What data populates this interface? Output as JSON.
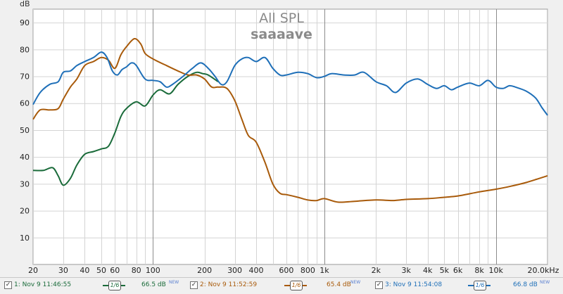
{
  "chart_data": {
    "type": "line",
    "title": "All SPL",
    "subtitle": "saaaave",
    "ylabel": "dB",
    "xscale": "log",
    "xlim": [
      20,
      20000
    ],
    "ylim": [
      0,
      95
    ],
    "grid": true,
    "x_tick_labels": [
      "20",
      "30",
      "40",
      "50",
      "60",
      "80",
      "100",
      "200",
      "300",
      "400",
      "600",
      "800",
      "1k",
      "2k",
      "3k",
      "4k",
      "5k",
      "6k",
      "8k",
      "10k",
      "20.0kHz"
    ],
    "y_tick_labels": [
      "90",
      "80",
      "70",
      "60",
      "50",
      "40",
      "30",
      "20",
      "10"
    ],
    "series": [
      {
        "name": "1: Nov 9 11:46:55",
        "color": "#1a6b3a",
        "points": [
          [
            20,
            35
          ],
          [
            23,
            35
          ],
          [
            26,
            36
          ],
          [
            28,
            33
          ],
          [
            30,
            29.5
          ],
          [
            33,
            32
          ],
          [
            36,
            37
          ],
          [
            40,
            41
          ],
          [
            45,
            42
          ],
          [
            50,
            43
          ],
          [
            55,
            44
          ],
          [
            60,
            49
          ],
          [
            65,
            55
          ],
          [
            70,
            58
          ],
          [
            80,
            60.5
          ],
          [
            90,
            59
          ],
          [
            100,
            63
          ],
          [
            110,
            65
          ],
          [
            125,
            63.5
          ],
          [
            140,
            67
          ],
          [
            160,
            70
          ],
          [
            180,
            71.5
          ],
          [
            195,
            71
          ],
          [
            210,
            70.5
          ],
          [
            240,
            68
          ]
        ]
      },
      {
        "name": "2: Nov 9 11:52:59",
        "color": "#a85a0a",
        "points": [
          [
            20,
            54
          ],
          [
            22,
            57.5
          ],
          [
            25,
            57.5
          ],
          [
            28,
            58
          ],
          [
            30,
            61.5
          ],
          [
            33,
            66
          ],
          [
            36,
            69
          ],
          [
            40,
            74
          ],
          [
            45,
            75.5
          ],
          [
            50,
            77
          ],
          [
            55,
            76
          ],
          [
            60,
            73
          ],
          [
            65,
            78
          ],
          [
            70,
            81
          ],
          [
            78,
            84
          ],
          [
            85,
            82
          ],
          [
            90,
            78.5
          ],
          [
            100,
            76.5
          ],
          [
            120,
            74
          ],
          [
            140,
            72
          ],
          [
            160,
            70.5
          ],
          [
            180,
            70.5
          ],
          [
            200,
            69
          ],
          [
            220,
            66
          ],
          [
            240,
            66
          ],
          [
            270,
            65.5
          ],
          [
            300,
            61
          ],
          [
            330,
            54
          ],
          [
            360,
            48
          ],
          [
            400,
            45.5
          ],
          [
            450,
            38
          ],
          [
            500,
            30
          ],
          [
            550,
            26.5
          ],
          [
            600,
            26
          ],
          [
            700,
            25
          ],
          [
            800,
            24
          ],
          [
            900,
            23.8
          ],
          [
            1000,
            24.5
          ],
          [
            1200,
            23.2
          ],
          [
            1500,
            23.5
          ],
          [
            2000,
            24
          ],
          [
            2500,
            23.8
          ],
          [
            3000,
            24.2
          ],
          [
            4000,
            24.5
          ],
          [
            5000,
            25
          ],
          [
            6000,
            25.5
          ],
          [
            8000,
            27
          ],
          [
            10000,
            28
          ],
          [
            12000,
            29
          ],
          [
            15000,
            30.5
          ],
          [
            20000,
            33
          ]
        ]
      },
      {
        "name": "3: Nov 9 11:54:08",
        "color": "#1e6fb8",
        "points": [
          [
            20,
            59.5
          ],
          [
            22,
            64
          ],
          [
            25,
            67
          ],
          [
            28,
            68
          ],
          [
            30,
            71.5
          ],
          [
            33,
            72
          ],
          [
            36,
            74
          ],
          [
            40,
            75.5
          ],
          [
            45,
            77
          ],
          [
            50,
            79
          ],
          [
            54,
            77
          ],
          [
            58,
            72
          ],
          [
            62,
            70.5
          ],
          [
            66,
            72.5
          ],
          [
            70,
            73.5
          ],
          [
            75,
            75
          ],
          [
            80,
            74
          ],
          [
            90,
            69
          ],
          [
            100,
            68.5
          ],
          [
            110,
            68
          ],
          [
            120,
            66
          ],
          [
            130,
            67
          ],
          [
            150,
            70
          ],
          [
            170,
            73
          ],
          [
            190,
            75
          ],
          [
            210,
            73
          ],
          [
            230,
            70
          ],
          [
            250,
            67
          ],
          [
            270,
            68
          ],
          [
            300,
            74
          ],
          [
            330,
            76.5
          ],
          [
            360,
            77
          ],
          [
            400,
            75.5
          ],
          [
            450,
            77
          ],
          [
            500,
            73
          ],
          [
            550,
            70.5
          ],
          [
            600,
            70.5
          ],
          [
            700,
            71.5
          ],
          [
            800,
            71
          ],
          [
            900,
            69.5
          ],
          [
            1000,
            70
          ],
          [
            1100,
            71
          ],
          [
            1300,
            70.5
          ],
          [
            1500,
            70.5
          ],
          [
            1700,
            71.5
          ],
          [
            2000,
            68
          ],
          [
            2300,
            66.5
          ],
          [
            2600,
            64
          ],
          [
            3000,
            67.5
          ],
          [
            3500,
            69
          ],
          [
            4000,
            67
          ],
          [
            4500,
            65.5
          ],
          [
            5000,
            66.5
          ],
          [
            5500,
            65
          ],
          [
            6000,
            66
          ],
          [
            7000,
            67.5
          ],
          [
            8000,
            66.5
          ],
          [
            9000,
            68.5
          ],
          [
            10000,
            66
          ],
          [
            11000,
            65.5
          ],
          [
            12000,
            66.5
          ],
          [
            13000,
            66
          ],
          [
            15000,
            64.5
          ],
          [
            17000,
            62
          ],
          [
            18500,
            58.5
          ],
          [
            20000,
            55.5
          ]
        ]
      }
    ]
  },
  "legend": [
    {
      "checked": "✓",
      "label": "1: Nov 9 11:46:55",
      "smoothing": "1/6",
      "average": "66.5 dB",
      "badge": "NEW",
      "color": "#1a6b3a"
    },
    {
      "checked": "✓",
      "label": "2: Nov 9 11:52:59",
      "smoothing": "1/6",
      "average": "65.4 dB",
      "badge": "NEW",
      "color": "#a85a0a"
    },
    {
      "checked": "✓",
      "label": "3: Nov 9 11:54:08",
      "smoothing": "1/6",
      "average": "66.8 dB",
      "badge": "NEW",
      "color": "#1e6fb8"
    }
  ]
}
